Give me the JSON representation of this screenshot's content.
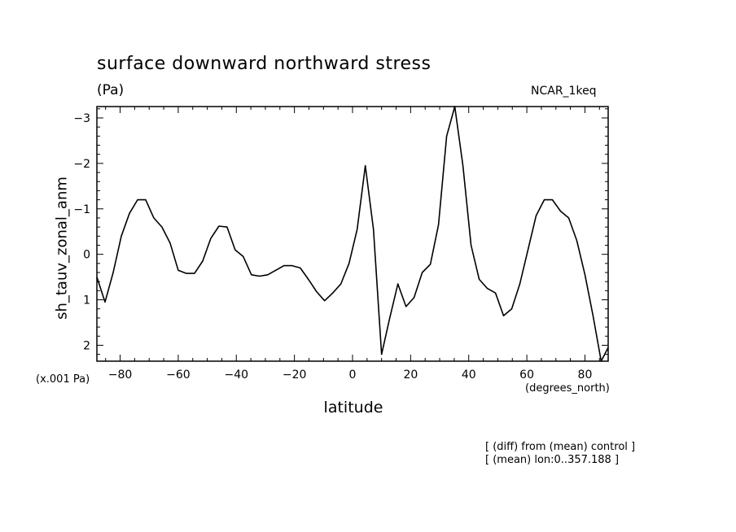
{
  "chart_data": {
    "type": "line",
    "title": "surface downward northward stress",
    "units": "(Pa)",
    "model": "NCAR_1keq",
    "ylabel": "sh_tauv_zonal_anm",
    "xlabel": "latitude",
    "y_scale_note": "(x.001 Pa)",
    "x_units": "(degrees_north)",
    "notes": [
      "[ (diff) from (mean) control ]",
      "[ (mean) lon:0..357.188 ]"
    ],
    "xlim": [
      -88,
      88
    ],
    "ylim": [
      2.35,
      -3.25
    ],
    "y_inverted": true,
    "grid": false,
    "x_ticks": [
      -80,
      -60,
      -40,
      -20,
      0,
      20,
      40,
      60,
      80
    ],
    "x_tick_labels": [
      "−80",
      "−60",
      "−40",
      "−20",
      "0",
      "20",
      "40",
      "60",
      "80"
    ],
    "y_ticks": [
      -3,
      -2,
      -1,
      0,
      1,
      2
    ],
    "y_tick_labels": [
      "−3",
      "−2",
      "−1",
      "0",
      "1",
      "2"
    ],
    "series": [
      {
        "x": [
          -88,
          -85.2,
          -82.4,
          -79.6,
          -76.8,
          -74,
          -71.2,
          -68.4,
          -65.6,
          -62.8,
          -60,
          -57.2,
          -54.4,
          -51.6,
          -48.8,
          -46,
          -43.2,
          -40.4,
          -37.6,
          -34.8,
          -32,
          -29.2,
          -26.4,
          -23.6,
          -20.8,
          -18,
          -15.2,
          -12.4,
          -9.6,
          -6.8,
          -4,
          -1.2,
          1.6,
          4.4,
          7.2,
          10,
          12.8,
          15.6,
          18.4,
          21.2,
          24,
          26.8,
          29.6,
          32.4,
          35.2,
          38,
          40.8,
          43.6,
          46.4,
          49.2,
          52,
          54.8,
          57.6,
          60.4,
          63.2,
          66,
          68.8,
          71.6,
          74.4,
          77.2,
          80,
          82.8,
          85.6,
          88
        ],
        "y": [
          0.5,
          1.05,
          0.4,
          -0.4,
          -0.9,
          -1.2,
          -1.2,
          -0.8,
          -0.6,
          -0.25,
          0.35,
          0.42,
          0.42,
          0.15,
          -0.35,
          -0.62,
          -0.6,
          -0.1,
          0.05,
          0.45,
          0.48,
          0.45,
          0.35,
          0.25,
          0.25,
          0.3,
          0.55,
          0.82,
          1.02,
          0.85,
          0.65,
          0.2,
          -0.55,
          -1.95,
          -0.55,
          2.2,
          1.4,
          0.65,
          1.15,
          0.95,
          0.4,
          0.22,
          -0.65,
          -2.6,
          -3.25,
          -1.95,
          -0.2,
          0.55,
          0.75,
          0.85,
          1.35,
          1.2,
          0.65,
          -0.1,
          -0.85,
          -1.2,
          -1.2,
          -0.95,
          -0.8,
          -0.3,
          0.45,
          1.35,
          2.35,
          2.05
        ]
      }
    ]
  }
}
